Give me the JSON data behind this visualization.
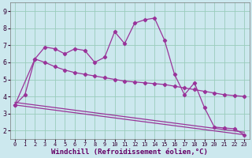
{
  "background_color": "#cce8ee",
  "line_color": "#993399",
  "grid_color": "#99ccbb",
  "xlabel": "Windchill (Refroidissement éolien,°C)",
  "yticks": [
    2,
    3,
    4,
    5,
    6,
    7,
    8,
    9
  ],
  "xticks": [
    0,
    1,
    2,
    3,
    4,
    5,
    6,
    7,
    8,
    9,
    10,
    11,
    12,
    13,
    14,
    15,
    16,
    17,
    18,
    19,
    20,
    21,
    22,
    23
  ],
  "xlim": [
    -0.5,
    23.5
  ],
  "ylim": [
    1.5,
    9.5
  ],
  "series1_x": [
    0,
    1,
    2,
    3,
    4,
    5,
    6,
    7,
    8,
    9,
    10,
    11,
    12,
    13,
    14,
    15,
    16,
    17,
    18,
    19,
    20,
    21,
    22,
    23
  ],
  "series1_y": [
    3.5,
    4.1,
    6.2,
    6.9,
    6.8,
    6.5,
    6.8,
    6.7,
    6.0,
    6.3,
    7.8,
    7.1,
    8.3,
    8.5,
    8.6,
    7.3,
    5.3,
    4.1,
    4.8,
    3.35,
    2.2,
    2.15,
    2.1,
    1.75
  ],
  "series2_x": [
    0,
    2,
    3,
    4,
    5,
    6,
    7,
    8,
    9,
    10,
    11,
    12,
    13,
    14,
    15,
    16,
    17,
    18,
    19,
    20,
    21,
    22,
    23
  ],
  "series2_y": [
    3.5,
    6.2,
    6.0,
    5.75,
    5.55,
    5.4,
    5.3,
    5.2,
    5.1,
    5.0,
    4.9,
    4.85,
    4.8,
    4.75,
    4.7,
    4.6,
    4.5,
    4.4,
    4.3,
    4.2,
    4.1,
    4.05,
    4.0
  ],
  "series3_x": [
    0,
    23
  ],
  "series3_y": [
    3.5,
    1.75
  ],
  "series4_x": [
    0,
    23
  ],
  "series4_y": [
    3.65,
    1.9
  ]
}
